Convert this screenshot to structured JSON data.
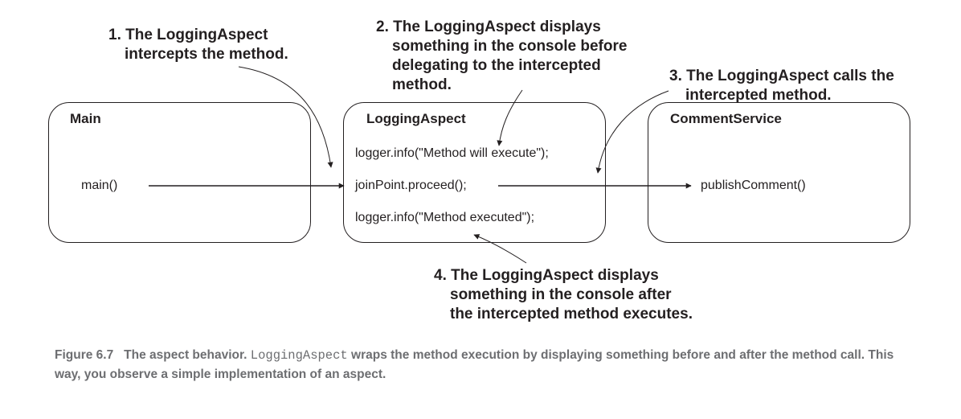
{
  "boxes": {
    "main": {
      "title": "Main",
      "call": "main()"
    },
    "logging_aspect": {
      "title": "LoggingAspect",
      "line1": "logger.info(\"Method will execute\");",
      "line2": "joinPoint.proceed();",
      "line3": "logger.info(\"Method executed\");"
    },
    "comment_service": {
      "title": "CommentService",
      "call": "publishComment()"
    }
  },
  "annotations": {
    "note1": {
      "line1": "1. The LoggingAspect",
      "line2": "intercepts the method."
    },
    "note2": {
      "line1": "2. The LoggingAspect displays",
      "line2": "something in the console before",
      "line3": "delegating to the intercepted",
      "line4": "method."
    },
    "note3": {
      "line1": "3. The LoggingAspect calls the",
      "line2": "intercepted method."
    },
    "note4": {
      "line1": "4. The LoggingAspect displays",
      "line2": "something in the console after",
      "line3": "the intercepted method executes."
    }
  },
  "caption": {
    "label": "Figure 6.7",
    "text_before": "The aspect behavior.",
    "code": "LoggingAspect",
    "text_after": "wraps the method execution by displaying something before and after the method call. This way, you observe a simple implementation of an aspect."
  },
  "colors": {
    "ink": "#231f20",
    "caption": "#6d6e71"
  }
}
